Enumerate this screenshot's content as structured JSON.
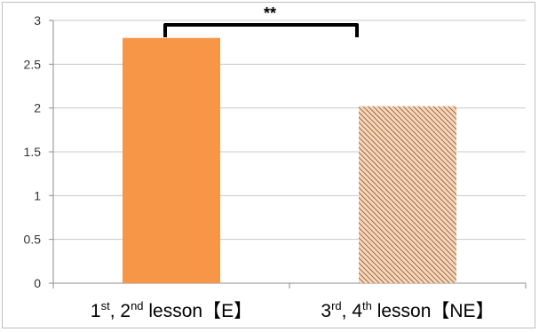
{
  "chart_data": {
    "type": "bar",
    "categories": [
      {
        "main": "1",
        "sup1": "st",
        "mid": ", 2",
        "sup2": "nd",
        "tail": " lesson【E】"
      },
      {
        "main": "3",
        "sup1": "rd",
        "mid": ", 4",
        "sup2": "th",
        "tail": " lesson【NE】"
      }
    ],
    "values": [
      2.8,
      2.02
    ],
    "ylim": [
      0,
      3
    ],
    "yticks": [
      "0",
      "0.5",
      "1",
      "1.5",
      "2",
      "2.5",
      "3"
    ],
    "grid": true,
    "legend": "none",
    "significance": {
      "label": "**",
      "between": [
        0,
        1
      ]
    },
    "colors": {
      "bar1": "#f79646",
      "bar2_fill": "#fbd5b5",
      "bar2_hatch": "#5a3b24",
      "grid": "#c8c8c8",
      "axis": "#8c8c8c"
    }
  }
}
